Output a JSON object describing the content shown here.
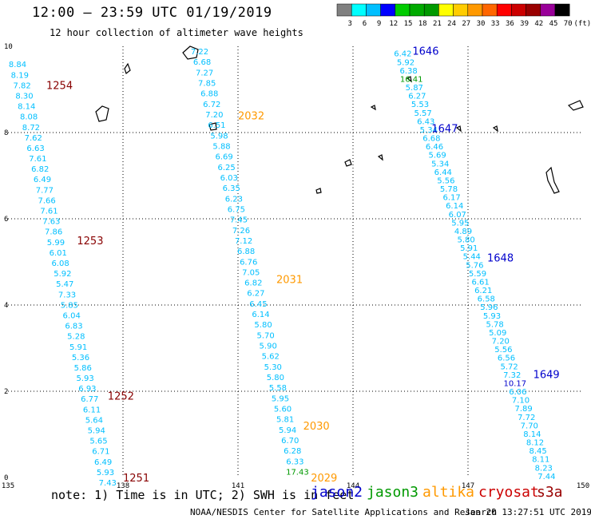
{
  "title": "12:00 — 23:59 UTC 01/19/2019",
  "subtitle": "12 hour collection of altimeter wave heights",
  "colorbar": {
    "labels": [
      "3",
      "6",
      "9",
      "12",
      "15",
      "18",
      "21",
      "24",
      "27",
      "30",
      "33",
      "36",
      "39",
      "42",
      "45",
      "70",
      "(ft)"
    ],
    "colors": [
      "#808080",
      "#00ffff",
      "#00bfff",
      "#0000ff",
      "#00cc00",
      "#00aa00",
      "#009900",
      "#ffff00",
      "#ffcc00",
      "#ff9900",
      "#ff6600",
      "#ff0000",
      "#cc0000",
      "#990000",
      "#990099",
      "#000000"
    ]
  },
  "map": {
    "lon_ticks": [
      "135",
      "138",
      "141",
      "144",
      "147",
      "150"
    ],
    "lat_ticks": [
      "0",
      "2",
      "4",
      "6",
      "8",
      "10"
    ]
  },
  "chart_data": {
    "type": "scatter",
    "xlim": [
      135,
      150
    ],
    "ylim": [
      0,
      10
    ],
    "units": "ft",
    "tracks": [
      {
        "color": "#00bfff",
        "labels": [
          {
            "text": "1254",
            "color": "#880000",
            "lon": 136.0,
            "lat": 9.1
          },
          {
            "text": "1253",
            "color": "#880000",
            "lon": 136.8,
            "lat": 5.5
          },
          {
            "text": "1252",
            "color": "#880000",
            "lon": 137.6,
            "lat": 1.9
          },
          {
            "text": "1251",
            "color": "#880000",
            "lon": 138.0,
            "lat": 0.0
          }
        ],
        "start": {
          "lon": 135.25,
          "lat": 9.7
        },
        "end": {
          "lon": 137.6,
          "lat": 0.0
        },
        "values": [
          "8.84",
          "8.19",
          "7.82",
          "8.30",
          "8.14",
          "8.08",
          "8.72",
          "7.62",
          "6.63",
          "7.61",
          "6.82",
          "6.49",
          "7.77",
          "7.66",
          "7.61",
          "7.63",
          "7.86",
          "5.99",
          "6.01",
          "6.08",
          "5.92",
          "5.47",
          "7.33",
          "5.85",
          "6.04",
          "6.83",
          "5.28",
          "5.91",
          "5.36",
          "5.86",
          "5.93",
          "6.93",
          "6.77",
          "6.11",
          "5.64",
          "5.94",
          "5.65",
          "6.71",
          "6.49",
          "5.93",
          "7.43"
        ]
      },
      {
        "color": "#00bfff",
        "labels": [
          {
            "text": "2032",
            "color": "#ff9900",
            "lon": 141.0,
            "lat": 8.4
          },
          {
            "text": "2031",
            "color": "#ff9900",
            "lon": 142.0,
            "lat": 4.6
          },
          {
            "text": "2030",
            "color": "#ff9900",
            "lon": 142.7,
            "lat": 1.2
          },
          {
            "text": "2029",
            "color": "#ff9900",
            "lon": 142.9,
            "lat": 0.0
          }
        ],
        "start": {
          "lon": 140.0,
          "lat": 10.0
        },
        "end": {
          "lon": 142.55,
          "lat": 0.25
        },
        "values": [
          "7.22",
          "6.68",
          "7.27",
          "7.85",
          "6.88",
          "6.72",
          "7.20",
          "6.51",
          "5.98",
          "5.88",
          "6.69",
          "6.25",
          "6.03",
          "6.35",
          "6.23",
          "6.75",
          "7.45",
          "7.26",
          "7.12",
          "6.88",
          "6.76",
          "7.05",
          "6.82",
          "6.27",
          "6.45",
          "6.14",
          "5.80",
          "5.70",
          "5.90",
          "5.62",
          "5.30",
          "5.80",
          "5.58",
          "5.95",
          "5.60",
          "5.81",
          "5.94",
          "6.70",
          "6.28",
          "6.33",
          "17.43"
        ]
      },
      {
        "color": "#00bfff",
        "labels": [
          {
            "text": "1646",
            "color": "#0000cc",
            "lon": 145.55,
            "lat": 9.9
          },
          {
            "text": "1647",
            "color": "#0000cc",
            "lon": 146.05,
            "lat": 8.1
          },
          {
            "text": "1648",
            "color": "#0000cc",
            "lon": 147.5,
            "lat": 5.1
          },
          {
            "text": "1649",
            "color": "#0000cc",
            "lon": 148.7,
            "lat": 2.4
          }
        ],
        "start": {
          "lon": 145.3,
          "lat": 9.95
        },
        "end": {
          "lon": 149.05,
          "lat": 0.15
        },
        "values": [
          "6.42",
          "5.92",
          "6.38",
          "16.41",
          "5.87",
          "6.27",
          "5.53",
          "5.57",
          "6.43",
          "5.34",
          "6.68",
          "6.46",
          "5.69",
          "5.34",
          "6.44",
          "5.56",
          "5.78",
          "6.17",
          "6.14",
          "6.07",
          "5.95",
          "4.89",
          "5.80",
          "5.91",
          "5.44",
          "5.76",
          "5.59",
          "6.61",
          "6.21",
          "6.58",
          "5.96",
          "5.93",
          "5.78",
          "5.09",
          "7.20",
          "5.56",
          "6.56",
          "5.72",
          "7.32",
          "10.17",
          "6.06",
          "7.10",
          "7.89",
          "7.72",
          "7.70",
          "8.14",
          "8.12",
          "8.45",
          "8.11",
          "8.23",
          "7.44"
        ]
      }
    ]
  },
  "footer": {
    "note": "note: 1) Time is in UTC; 2) SWH is in feet",
    "credit": "NOAA/NESDIS Center for Satellite Applications and Research",
    "timestamp": "Jan 20 13:27:51 UTC 2019"
  },
  "legend": {
    "jason2": "jason2",
    "jason3": "jason3",
    "altika": "altika",
    "cryosat": "cryosat",
    "s3a": "s3a"
  }
}
